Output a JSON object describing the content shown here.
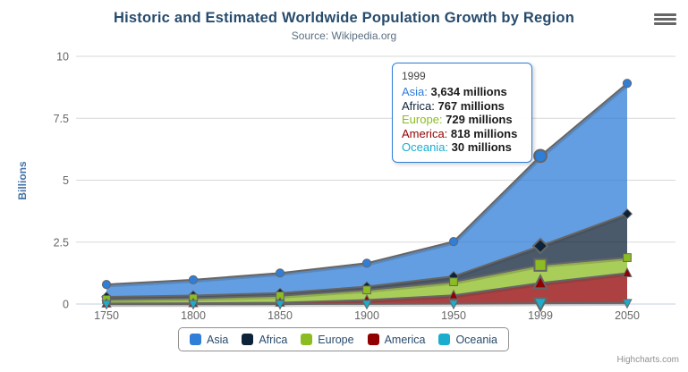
{
  "header": {
    "title": "Historic and Estimated Worldwide Population Growth by Region",
    "subtitle": "Source: Wikipedia.org"
  },
  "context_menu": {
    "icon": "hamburger-icon"
  },
  "credits": {
    "label": "Highcharts.com"
  },
  "chart_data": {
    "type": "area",
    "stacking": "normal",
    "title": "Historic and Estimated Worldwide Population Growth by Region",
    "subtitle": "Source: Wikipedia.org",
    "xlabel": "",
    "ylabel": "Billions",
    "value_unit": "millions",
    "ylim": [
      0,
      10
    ],
    "yticks": [
      0,
      2.5,
      5,
      7.5,
      10
    ],
    "ytick_labels": [
      "0",
      "2.5",
      "5",
      "7.5",
      "10"
    ],
    "grid": true,
    "legend_position": "bottom",
    "x_axis_type": "category",
    "categories": [
      "1750",
      "1800",
      "1850",
      "1900",
      "1950",
      "1999",
      "2050"
    ],
    "hovered_category": "1999",
    "line_color": "#666666",
    "fill_opacity": 0.75,
    "series": [
      {
        "name": "Asia",
        "color": "#2f7ed8",
        "marker": "circle",
        "values_millions": [
          502,
          635,
          809,
          947,
          1402,
          3634,
          5268
        ]
      },
      {
        "name": "Africa",
        "color": "#0d233a",
        "marker": "diamond",
        "values_millions": [
          106,
          107,
          111,
          133,
          221,
          767,
          1766
        ]
      },
      {
        "name": "Europe",
        "color": "#8bbc21",
        "marker": "square",
        "values_millions": [
          163,
          203,
          276,
          408,
          547,
          729,
          628
        ]
      },
      {
        "name": "America",
        "color": "#910000",
        "marker": "triangle",
        "values_millions": [
          18,
          31,
          54,
          156,
          339,
          818,
          1201
        ]
      },
      {
        "name": "Oceania",
        "color": "#1aadce",
        "marker": "triangle-down",
        "values_millions": [
          2,
          2,
          2,
          6,
          13,
          30,
          46
        ]
      }
    ]
  },
  "tooltip": {
    "header": "1999",
    "border_color": "#2f7ed8",
    "rows": [
      {
        "region": "Asia",
        "value": "3,634 millions",
        "color": "#2f7ed8"
      },
      {
        "region": "Africa",
        "value": "767 millions",
        "color": "#0d233a"
      },
      {
        "region": "Europe",
        "value": "729 millions",
        "color": "#8bbc21"
      },
      {
        "region": "America",
        "value": "818 millions",
        "color": "#910000"
      },
      {
        "region": "Oceania",
        "value": "30 millions",
        "color": "#1aadce"
      }
    ]
  },
  "legend": {
    "items": [
      {
        "label": "Asia",
        "color": "#2f7ed8"
      },
      {
        "label": "Africa",
        "color": "#0d233a"
      },
      {
        "label": "Europe",
        "color": "#8bbc21"
      },
      {
        "label": "America",
        "color": "#910000"
      },
      {
        "label": "Oceania",
        "color": "#1aadce"
      }
    ]
  },
  "axis_style": {
    "tick_label_color": "#666666",
    "grid_color": "#d8d8d8",
    "axis_line_color": "#c0d0e0",
    "ylabel_color": "#4572a7"
  }
}
